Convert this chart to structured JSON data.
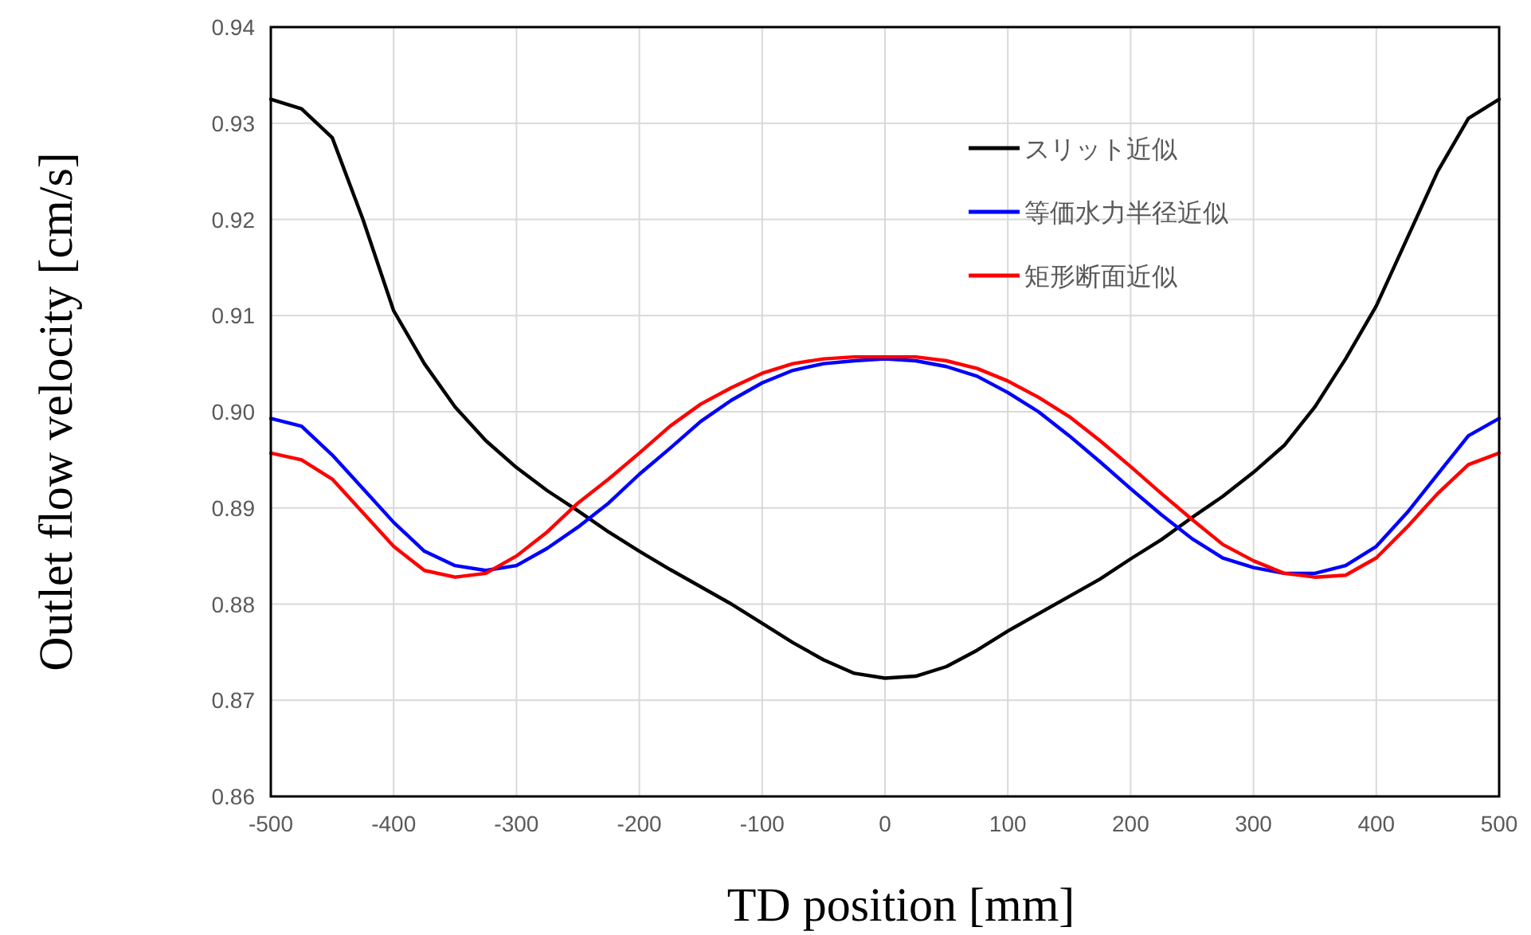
{
  "chart_data": {
    "type": "line",
    "xlabel": "TD position [mm]",
    "ylabel": "Outlet flow velocity [cm/s]",
    "x": [
      -500,
      -475,
      -450,
      -425,
      -400,
      -375,
      -350,
      -325,
      -300,
      -275,
      -250,
      -225,
      -200,
      -175,
      -150,
      -125,
      -100,
      -75,
      -50,
      -25,
      0,
      25,
      50,
      75,
      100,
      125,
      150,
      175,
      200,
      225,
      250,
      275,
      300,
      325,
      350,
      375,
      400,
      425,
      450,
      475,
      500
    ],
    "series": [
      {
        "name": "スリット近似",
        "color": "#000000",
        "values": [
          0.9325,
          0.9315,
          0.9285,
          0.92,
          0.9105,
          0.905,
          0.9005,
          0.897,
          0.8942,
          0.8918,
          0.8897,
          0.8875,
          0.8855,
          0.8836,
          0.8818,
          0.88,
          0.878,
          0.876,
          0.8742,
          0.8728,
          0.8723,
          0.8725,
          0.8735,
          0.8752,
          0.8772,
          0.879,
          0.8808,
          0.8826,
          0.8847,
          0.8867,
          0.889,
          0.8912,
          0.8937,
          0.8965,
          0.9005,
          0.9055,
          0.911,
          0.918,
          0.925,
          0.9305,
          0.9325
        ]
      },
      {
        "name": "等価水力半径近似",
        "color": "#0000ff",
        "values": [
          0.8993,
          0.8985,
          0.8955,
          0.892,
          0.8885,
          0.8855,
          0.884,
          0.8835,
          0.884,
          0.8858,
          0.888,
          0.8905,
          0.8935,
          0.8962,
          0.899,
          0.9012,
          0.903,
          0.9043,
          0.905,
          0.9053,
          0.9055,
          0.9053,
          0.9047,
          0.9037,
          0.902,
          0.9,
          0.8975,
          0.8948,
          0.892,
          0.8893,
          0.8868,
          0.8848,
          0.8838,
          0.8832,
          0.8832,
          0.884,
          0.886,
          0.8895,
          0.8935,
          0.8975,
          0.8993
        ]
      },
      {
        "name": "矩形断面近似",
        "color": "#ff0000",
        "values": [
          0.8957,
          0.895,
          0.893,
          0.8895,
          0.886,
          0.8835,
          0.8828,
          0.8832,
          0.885,
          0.8875,
          0.8905,
          0.893,
          0.8957,
          0.8985,
          0.9008,
          0.9025,
          0.904,
          0.905,
          0.9055,
          0.9057,
          0.9057,
          0.9057,
          0.9053,
          0.9045,
          0.9032,
          0.9015,
          0.8995,
          0.897,
          0.8943,
          0.8915,
          0.8888,
          0.8862,
          0.8845,
          0.8832,
          0.8828,
          0.883,
          0.8848,
          0.888,
          0.8915,
          0.8945,
          0.8957
        ]
      }
    ],
    "xlim": [
      -500,
      500
    ],
    "xticks": [
      -500,
      -400,
      -300,
      -200,
      -100,
      0,
      100,
      200,
      300,
      400,
      500
    ],
    "ylim": [
      0.86,
      0.94
    ],
    "yticks": [
      {
        "value": 0.86,
        "label": "0.86"
      },
      {
        "value": 0.87,
        "label": "0.87"
      },
      {
        "value": 0.88,
        "label": "0.88"
      },
      {
        "value": 0.89,
        "label": "0.89"
      },
      {
        "value": 0.9,
        "label": "0.90"
      },
      {
        "value": 0.91,
        "label": "0.91"
      },
      {
        "value": 0.92,
        "label": "0.92"
      },
      {
        "value": 0.93,
        "label": "0.93"
      },
      {
        "value": 0.94,
        "label": "0.94"
      }
    ],
    "grid": true,
    "legend": "top right",
    "marker": "none",
    "line_style": "solid"
  }
}
